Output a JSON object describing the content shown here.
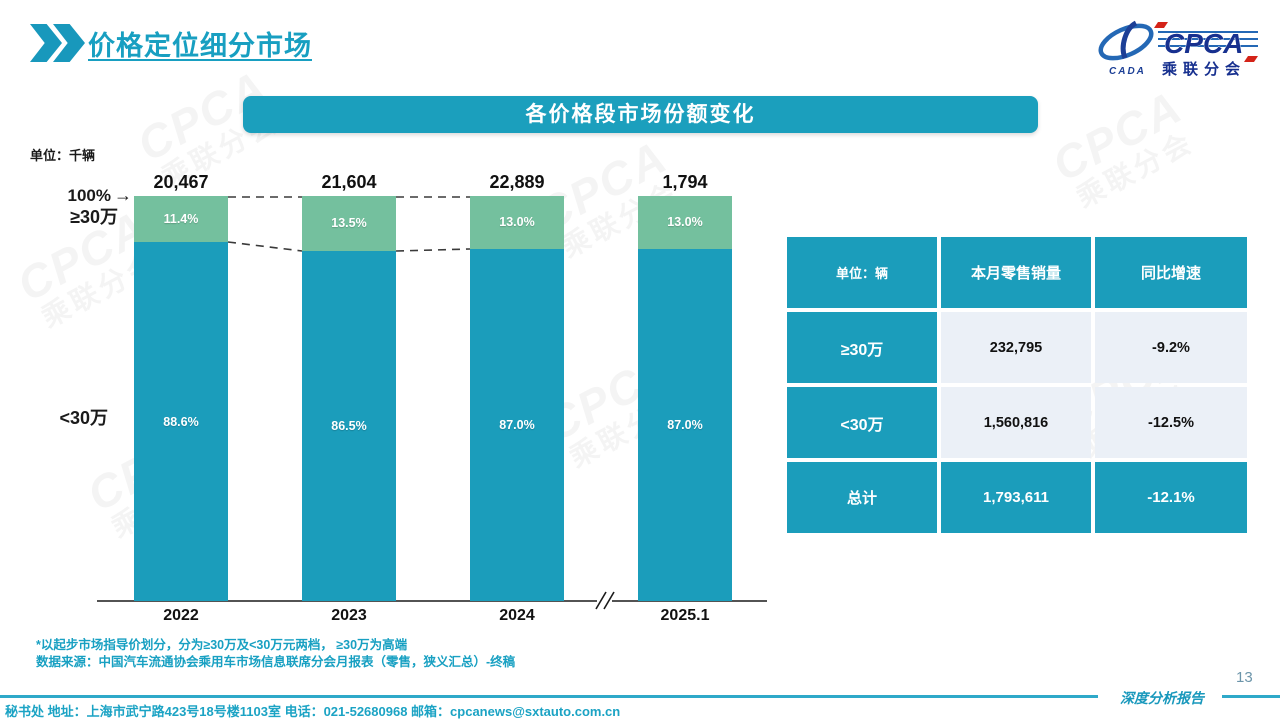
{
  "page": {
    "title": "价格定位细分市场",
    "page_number": "13",
    "report_label": "深度分析报告",
    "footer": "秘书处  地址：上海市武宁路423号18号楼1103室  电话：021-52680968   邮箱：cpcanews@sxtauto.com.cn"
  },
  "logo": {
    "cpca": "CPCA",
    "subtitle": "乘联分会",
    "cada": "CADA"
  },
  "watermark": {
    "big": "CPCA",
    "small": "乘联分会"
  },
  "chart": {
    "banner_title": "各价格段市场份额变化",
    "unit_label": "单位：千辆",
    "axis_100_label": "100%",
    "segment_top_label": "≥30万",
    "segment_bottom_label": "<30万"
  },
  "chart_data": {
    "type": "bar",
    "subtype": "stacked-100-percent",
    "title": "各价格段市场份额变化",
    "unit": "千辆",
    "categories": [
      "2022",
      "2023",
      "2024",
      "2025.1"
    ],
    "totals": [
      "20,467",
      "21,604",
      "22,889",
      "1,794"
    ],
    "series": [
      {
        "name": "≥30万",
        "values": [
          11.4,
          13.5,
          13.0,
          13.0
        ],
        "labels": [
          "11.4%",
          "13.5%",
          "13.0%",
          "13.0%"
        ],
        "color": "#74C09E"
      },
      {
        "name": "<30万",
        "values": [
          88.6,
          86.5,
          87.0,
          87.0
        ],
        "labels": [
          "88.6%",
          "86.5%",
          "87.0%",
          "87.0%"
        ],
        "color": "#1B9DBB"
      }
    ],
    "ylim": [
      0,
      100
    ],
    "value_axis_label": "100%",
    "axis_break_between": [
      "2024",
      "2025.1"
    ],
    "legend": "off",
    "grid": "off"
  },
  "table": {
    "headers": [
      "单位：辆",
      "本月零售销量",
      "同比增速"
    ],
    "rows": [
      {
        "label": "≥30万",
        "sales": "232,795",
        "yoy": "-9.2%"
      },
      {
        "label": "<30万",
        "sales": "1,560,816",
        "yoy": "-12.5%"
      },
      {
        "label": "总计",
        "sales": "1,793,611",
        "yoy": "-12.1%"
      }
    ]
  },
  "notes": {
    "line1": "*以起步市场指导价划分，分为≥30万及<30万元两档， ≥30万为高端",
    "line2": "数据来源：中国汽车流通协会乘用车市场信息联席分会月报表（零售，狭义汇总）-终稿"
  },
  "colors": {
    "teal": "#1B9DBB",
    "green": "#74C09E",
    "banner": "#1B9FBD",
    "title_text": "#189FC1",
    "table_light_cell": "#EBF0F7",
    "footer_rule": "#2FA9C9",
    "logo_blue": "#1C3F96",
    "logo_red": "#D42318"
  }
}
